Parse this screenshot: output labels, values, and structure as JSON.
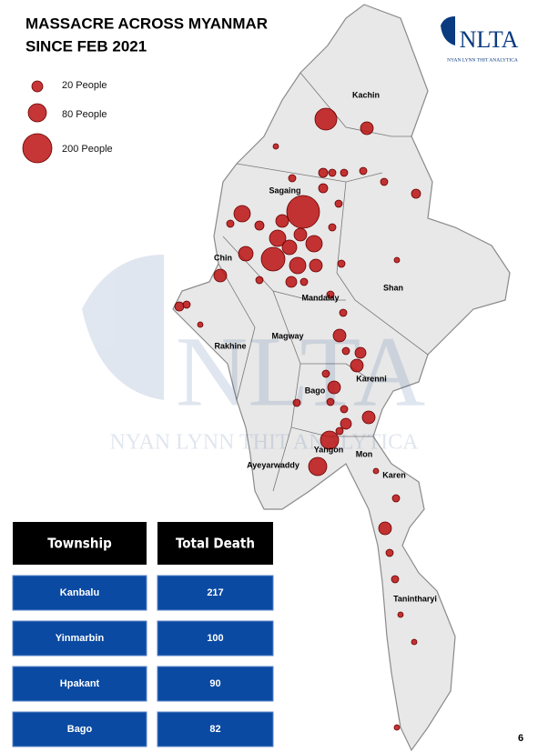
{
  "header": {
    "title_lines": [
      "MASSACRE ACROSS MYANMAR",
      "SINCE FEB 2021"
    ]
  },
  "logo": {
    "mark": "NLTA",
    "subtitle": "NYAN LYNN THIT ANALYTICA"
  },
  "legend": [
    {
      "label": "20 People"
    },
    {
      "label": "80 People"
    },
    {
      "label": "200 People"
    }
  ],
  "regions": [
    {
      "label": "Kachin"
    },
    {
      "label": "Sagaing"
    },
    {
      "label": "Chin"
    },
    {
      "label": "Mandalay"
    },
    {
      "label": "Shan"
    },
    {
      "label": "Rakhine"
    },
    {
      "label": "Magway"
    },
    {
      "label": "Karenni"
    },
    {
      "label": "Bago"
    },
    {
      "label": "Yangon"
    },
    {
      "label": "Mon"
    },
    {
      "label": "Ayeyarwaddy"
    },
    {
      "label": "Karen"
    },
    {
      "label": "Tanintharyi"
    }
  ],
  "table": {
    "columns": [
      "Township",
      "Total Death"
    ],
    "rows": [
      [
        "Kanbalu",
        217
      ],
      [
        "Yinmarbin",
        100
      ],
      [
        "Hpakant",
        90
      ],
      [
        "Bago",
        82
      ]
    ]
  },
  "page_number": 6
}
